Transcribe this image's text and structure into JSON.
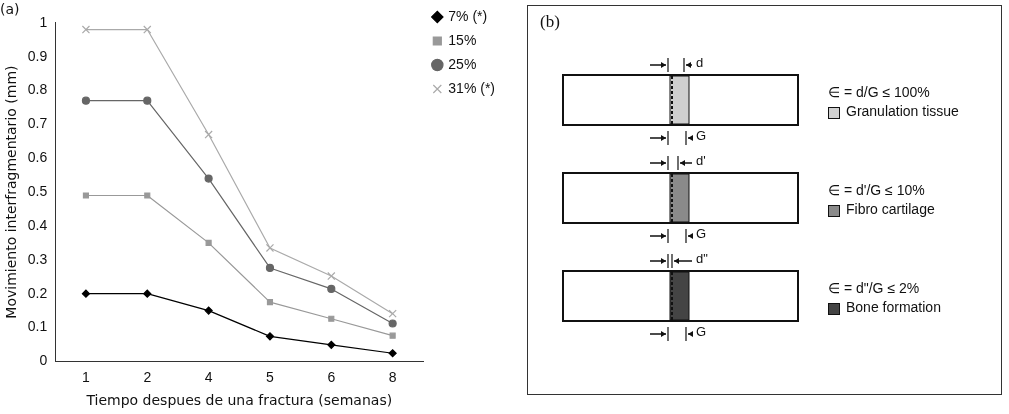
{
  "chart_data": [
    {
      "type": "line",
      "title": "(a)",
      "xlabel": "Tiempo despues de una fractura (semanas)",
      "ylabel": "Movimiento interfragmentario (mm)",
      "categories": [
        "1",
        "2",
        "4",
        "5",
        "6",
        "8"
      ],
      "series": [
        {
          "name": "7% (*)",
          "color": "#000000",
          "marker": "diamond",
          "values": [
            0.2,
            0.2,
            0.15,
            0.074,
            0.049,
            0.024
          ]
        },
        {
          "name": "15%",
          "color": "#999999",
          "marker": "square",
          "values": [
            0.49,
            0.49,
            0.35,
            0.175,
            0.126,
            0.076
          ]
        },
        {
          "name": "25%",
          "color": "#666666",
          "marker": "circle",
          "values": [
            0.77,
            0.77,
            0.54,
            0.276,
            0.214,
            0.112
          ]
        },
        {
          "name": "31% (*)",
          "color": "#aaaaaa",
          "marker": "cross",
          "values": [
            0.98,
            0.98,
            0.67,
            0.335,
            0.252,
            0.141
          ]
        }
      ],
      "ylim": [
        0,
        1
      ],
      "yticks": [
        0,
        0.1,
        0.2,
        0.3,
        0.4,
        0.5,
        0.6,
        0.7,
        0.8,
        0.9,
        1
      ],
      "grid": false,
      "legend": "top right",
      "line_style": "solid"
    },
    {
      "type": "other",
      "title": "(b)",
      "annotations": [
        "d",
        "G",
        "∈ = d/G ≤ 100%",
        "Granulation tissue",
        "d'",
        "G",
        "∈ = d'/G ≤ 10%",
        "Fibro cartilage",
        "d\"",
        "G",
        "∈ = d\"/G ≤ 2%",
        "Bone formation"
      ]
    }
  ]
}
